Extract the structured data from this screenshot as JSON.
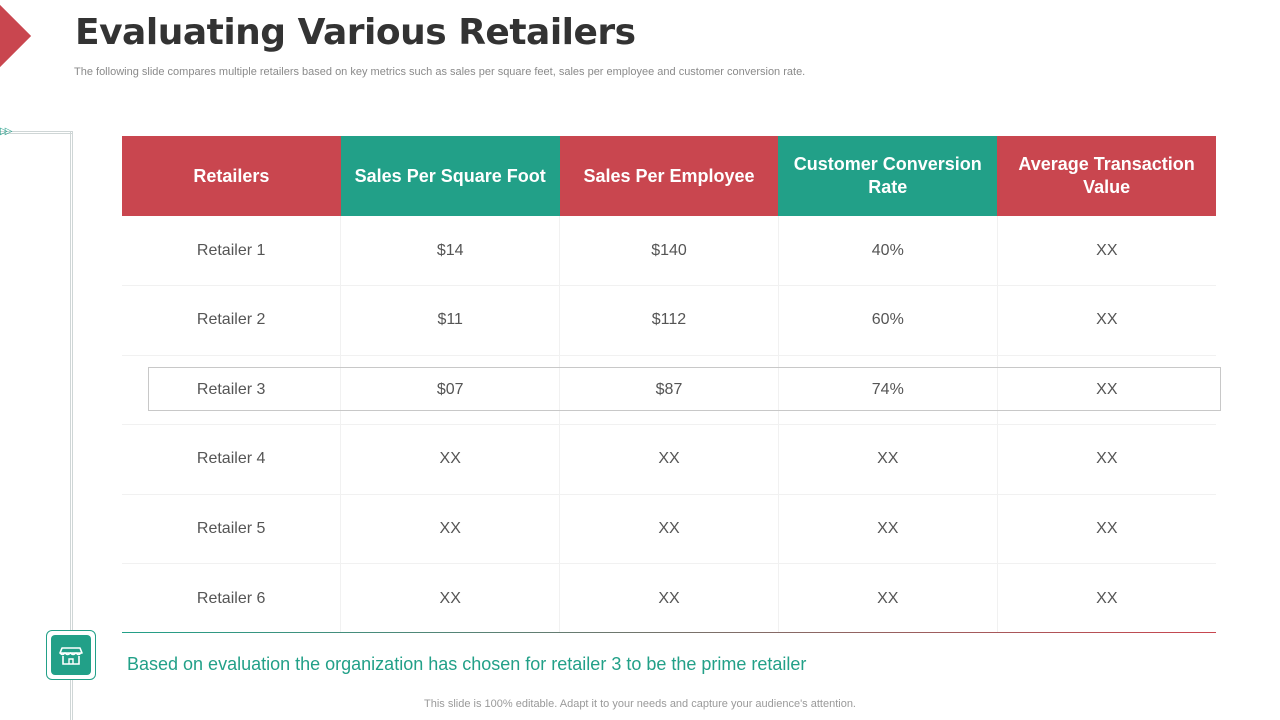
{
  "title": "Evaluating Various Retailers",
  "subtitle": "The following slide compares multiple retailers based on key metrics such as sales per square feet, sales per employee and customer conversion rate.",
  "colors": {
    "accent_red": "#c9464f",
    "accent_green": "#22a088"
  },
  "table": {
    "headers": [
      {
        "label": "Retailers",
        "color": "red"
      },
      {
        "label": "Sales Per Square Foot",
        "color": "green"
      },
      {
        "label": "Sales Per Employee",
        "color": "red"
      },
      {
        "label": "Customer Conversion Rate",
        "color": "green"
      },
      {
        "label": "Average Transaction Value",
        "color": "red"
      }
    ],
    "rows": [
      [
        "Retailer 1",
        "$14",
        "$140",
        "40%",
        "XX"
      ],
      [
        "Retailer 2",
        "$11",
        "$112",
        "60%",
        "XX"
      ],
      [
        "Retailer 3",
        "$07",
        "$87",
        "74%",
        "XX"
      ],
      [
        "Retailer 4",
        "XX",
        "XX",
        "XX",
        "XX"
      ],
      [
        "Retailer 5",
        "XX",
        "XX",
        "XX",
        "XX"
      ],
      [
        "Retailer 6",
        "XX",
        "XX",
        "XX",
        "XX"
      ]
    ],
    "highlighted_row": 3
  },
  "icons": {
    "badge": "store-icon",
    "marker": "double-play-icon"
  },
  "conclusion": "Based on evaluation the organization has chosen for retailer 3 to be the prime retailer",
  "footer": "This slide is 100% editable. Adapt it to your needs and capture your audience's attention."
}
